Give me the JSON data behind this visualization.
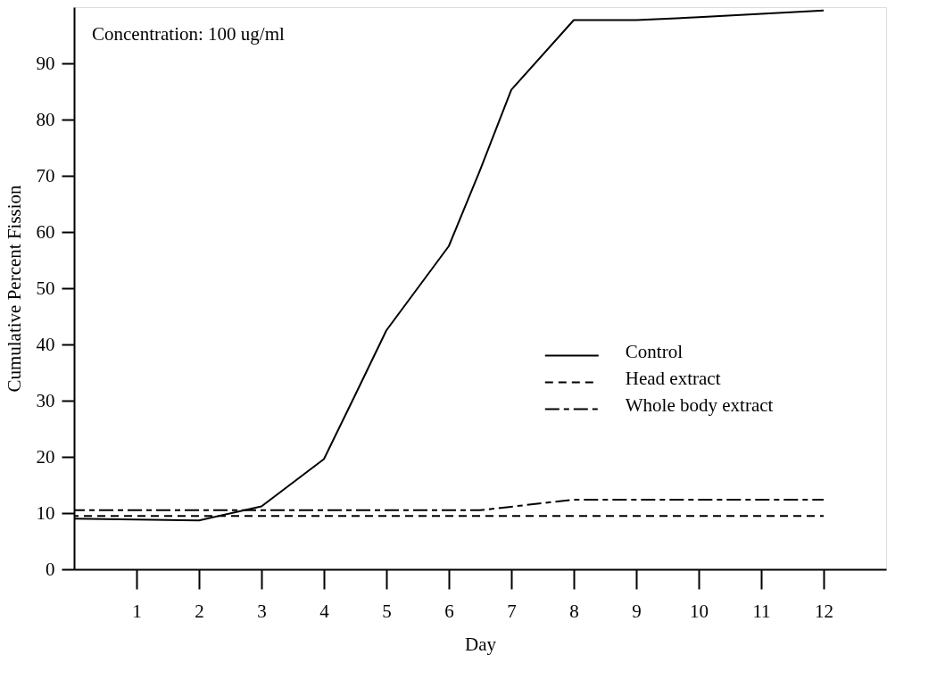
{
  "chart_data": {
    "type": "line",
    "xlabel": "Day",
    "ylabel": "Cumulative Percent Fission",
    "annotations": [
      "Concentration:  100 ug/ml"
    ],
    "xlim": [
      0,
      13
    ],
    "xticks": [
      1,
      2,
      3,
      4,
      5,
      6,
      7,
      8,
      9,
      10,
      11,
      12
    ],
    "ylim": [
      0,
      100
    ],
    "yticks": [
      0,
      10,
      20,
      30,
      40,
      50,
      60,
      70,
      80,
      90
    ],
    "grid": false,
    "legend": "right",
    "marker": "none",
    "series": [
      {
        "name": "Control",
        "color": "#000000",
        "line_style": "solid",
        "x": [
          0,
          2,
          3,
          4,
          4.5,
          5,
          6,
          6.5,
          7,
          8,
          9,
          10,
          11,
          12
        ],
        "values": [
          9,
          8.7,
          11.2,
          19.6,
          31,
          42.5,
          57.5,
          71,
          85.3,
          97.7,
          97.7,
          98.2,
          98.8,
          99.4
        ]
      },
      {
        "name": "Head extract",
        "color": "#000000",
        "line_style": "dashed",
        "x": [
          0,
          12
        ],
        "values": [
          9.5,
          9.5
        ]
      },
      {
        "name": "Whole body extract",
        "color": "#000000",
        "line_style": "dashdot",
        "x": [
          0,
          6.5,
          8,
          12
        ],
        "values": [
          10.5,
          10.5,
          12.4,
          12.4
        ]
      }
    ]
  }
}
